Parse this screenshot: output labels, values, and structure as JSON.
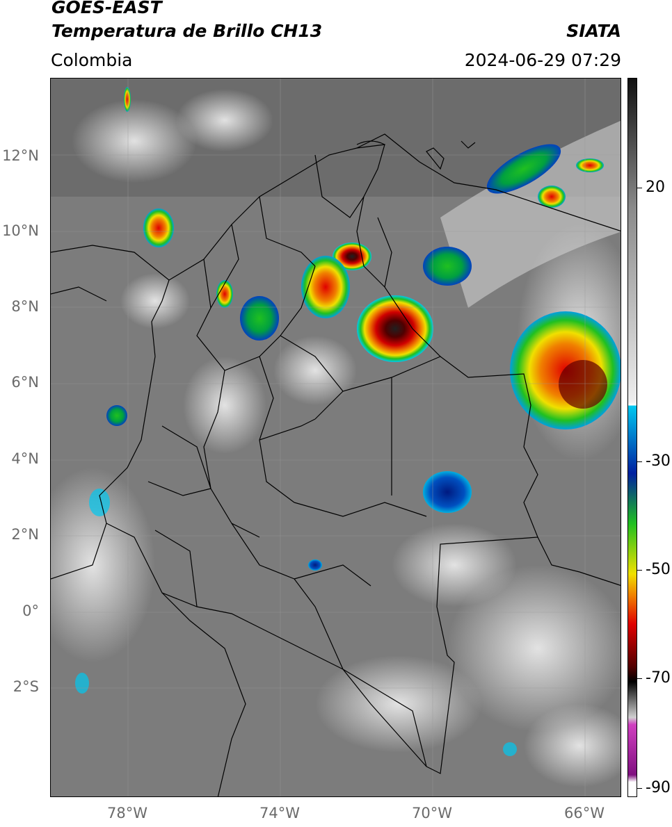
{
  "header": {
    "title_line1": "GOES-EAST",
    "title_line2": "Temperatura de Brillo CH13",
    "brand": "SIATA",
    "region": "Colombia",
    "timestamp": "2024-06-29 07:29"
  },
  "map": {
    "lat_labels": [
      "12°N",
      "10°N",
      "8°N",
      "6°N",
      "4°N",
      "2°N",
      "0°",
      "2°S"
    ],
    "lon_labels": [
      "78°W",
      "74°W",
      "70°W",
      "66°W"
    ]
  },
  "colorbar": {
    "tick_labels": [
      "20",
      "-30",
      "-50",
      "-70",
      "-90"
    ],
    "colors": {
      "warm_top": "#111111",
      "gray_high": "#8a8a8a",
      "gray_low": "#eeeeee",
      "cyan": "#00c8f0",
      "blue": "#0020a0",
      "green": "#20c020",
      "yellow": "#f0e000",
      "orange": "#f08000",
      "red": "#e00000",
      "dark_red": "#500000",
      "magenta": "#d040c0",
      "purple": "#801080"
    }
  }
}
